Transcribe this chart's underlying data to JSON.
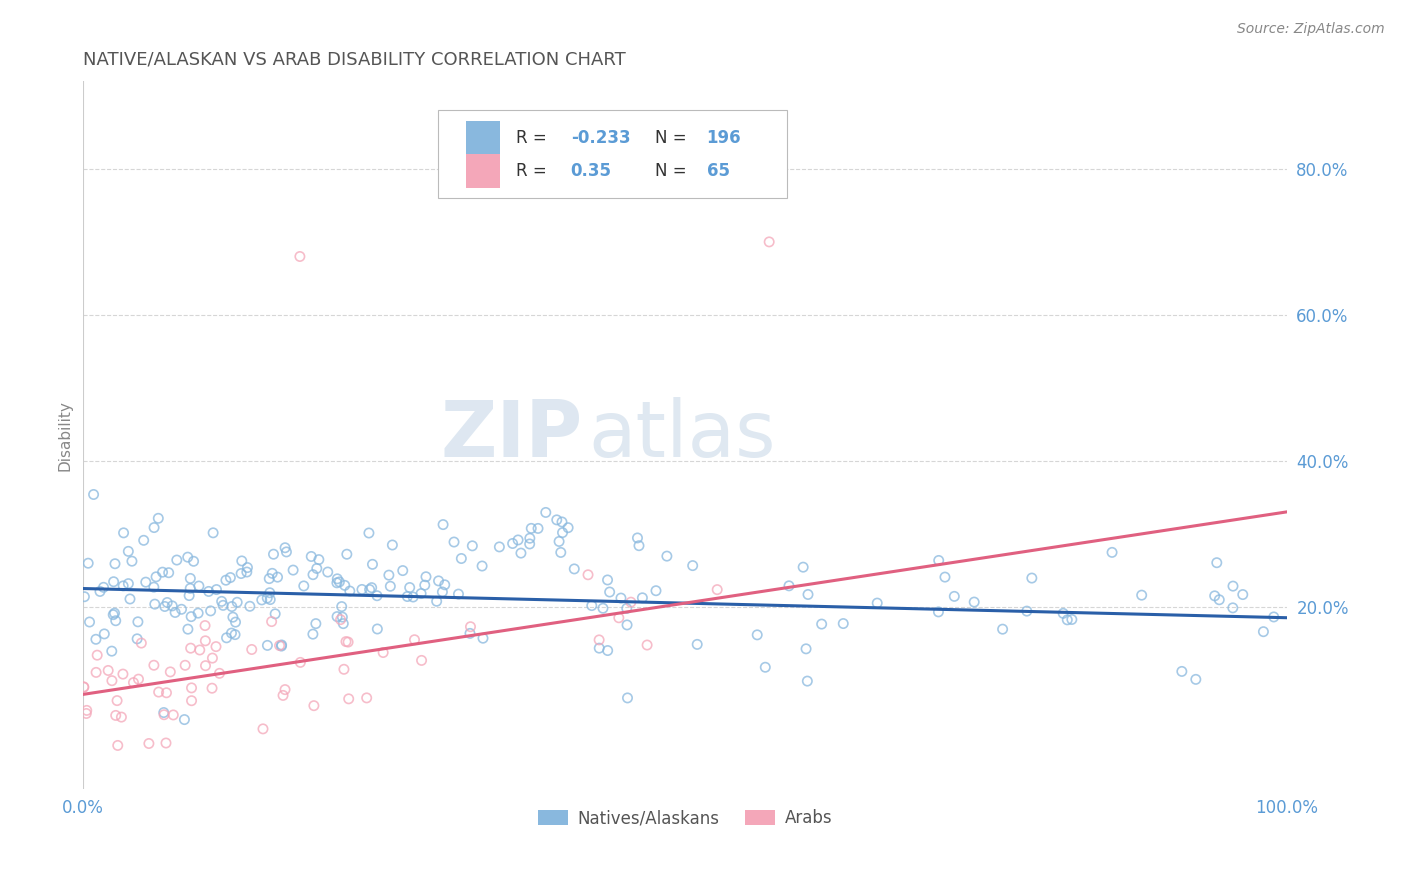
{
  "title": "NATIVE/ALASKAN VS ARAB DISABILITY CORRELATION CHART",
  "source_text": "Source: ZipAtlas.com",
  "ylabel": "Disability",
  "xlim": [
    0,
    1.0
  ],
  "ylim": [
    -0.05,
    0.92
  ],
  "xticks": [
    0.0,
    1.0
  ],
  "xtick_labels": [
    "0.0%",
    "100.0%"
  ],
  "yticks": [
    0.2,
    0.4,
    0.6,
    0.8
  ],
  "ytick_labels": [
    "20.0%",
    "40.0%",
    "60.0%",
    "80.0%"
  ],
  "blue_color": "#89b8de",
  "pink_color": "#f4a7b9",
  "blue_line_color": "#2a5fa8",
  "pink_line_color": "#e06080",
  "blue_R": -0.233,
  "blue_N": 196,
  "pink_R": 0.35,
  "pink_N": 65,
  "watermark_ZIP": "ZIP",
  "watermark_atlas": "atlas",
  "legend_label_blue": "Natives/Alaskans",
  "legend_label_pink": "Arabs",
  "grid_color": "#cccccc",
  "background_color": "#ffffff",
  "title_color": "#555555",
  "axis_label_color": "#888888",
  "tick_color": "#5b9bd5",
  "legend_R_color": "#e05080",
  "seed": 12345
}
